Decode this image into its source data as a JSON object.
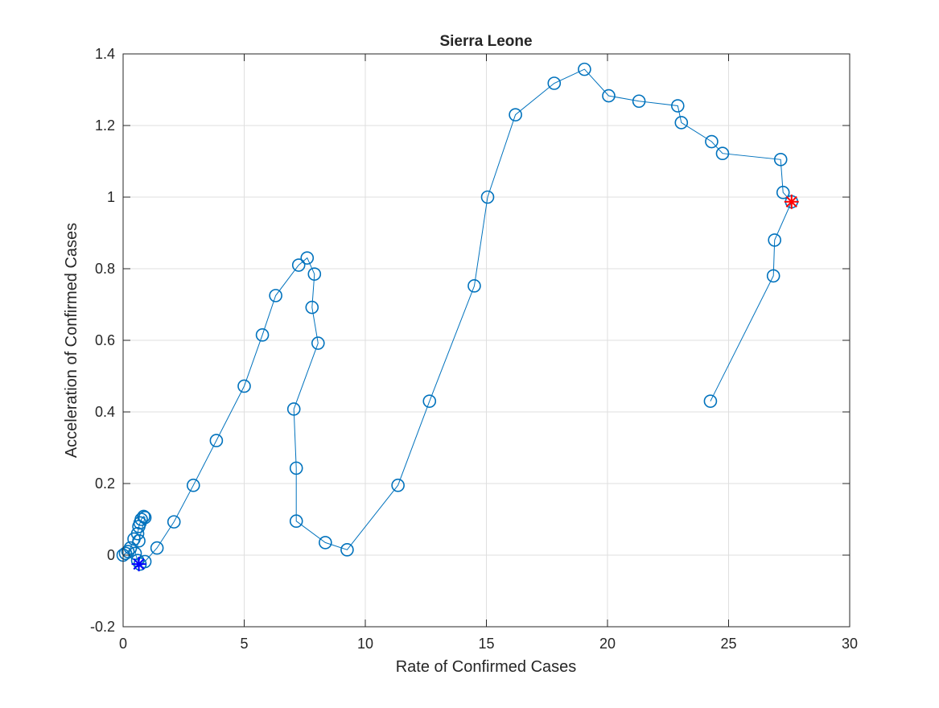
{
  "chart_data": {
    "type": "line",
    "title": "Sierra Leone",
    "xlabel": "Rate of Confirmed Cases",
    "ylabel": "Acceleration of Confirmed Cases",
    "xlim": [
      0,
      30
    ],
    "ylim": [
      -0.2,
      1.4
    ],
    "xticks": [
      0,
      5,
      10,
      15,
      20,
      25,
      30
    ],
    "xtick_labels": [
      "0",
      "5",
      "10",
      "15",
      "20",
      "25",
      "30"
    ],
    "yticks": [
      -0.2,
      0,
      0.2,
      0.4,
      0.6,
      0.8,
      1,
      1.2,
      1.4
    ],
    "ytick_labels": [
      "-0.2",
      "0",
      "0.2",
      "0.4",
      "0.6",
      "0.8",
      "1",
      "1.2",
      "1.4"
    ],
    "grid": true,
    "series": [
      {
        "color": "#0072BD",
        "marker": "circle",
        "x": [
          0.0,
          0.1,
          0.2,
          0.3,
          0.45,
          0.6,
          0.65,
          0.7,
          0.75,
          0.85,
          0.9,
          0.65,
          0.5,
          0.6,
          0.7,
          0.9,
          1.4,
          2.1,
          2.9,
          3.85,
          5.0,
          5.75,
          6.3,
          7.25,
          7.6,
          7.9,
          7.8,
          8.05,
          7.05,
          7.15,
          7.15,
          8.35,
          9.25,
          11.35,
          12.65,
          14.5,
          15.05,
          16.2,
          17.8,
          19.05,
          20.05,
          21.3,
          22.9,
          23.05,
          24.3,
          24.75,
          27.15,
          27.25,
          27.6,
          26.9,
          26.85,
          24.25
        ],
        "y": [
          0.0,
          0.005,
          0.01,
          0.02,
          0.045,
          0.06,
          0.08,
          0.09,
          0.1,
          0.108,
          0.105,
          0.04,
          0.005,
          -0.015,
          -0.025,
          -0.018,
          0.02,
          0.093,
          0.195,
          0.32,
          0.472,
          0.615,
          0.725,
          0.81,
          0.83,
          0.785,
          0.692,
          0.592,
          0.408,
          0.243,
          0.095,
          0.035,
          0.015,
          0.195,
          0.43,
          0.752,
          1.0,
          1.23,
          1.318,
          1.357,
          1.283,
          1.268,
          1.255,
          1.208,
          1.155,
          1.122,
          1.105,
          1.013,
          0.987,
          0.88,
          0.78,
          0.43
        ]
      }
    ],
    "start_marker": {
      "x": 0.65,
      "y": -0.025,
      "color": "#0000ff",
      "symbol": "asterisk"
    },
    "end_marker": {
      "x": 27.6,
      "y": 0.987,
      "color": "#ff0000",
      "symbol": "asterisk"
    }
  }
}
